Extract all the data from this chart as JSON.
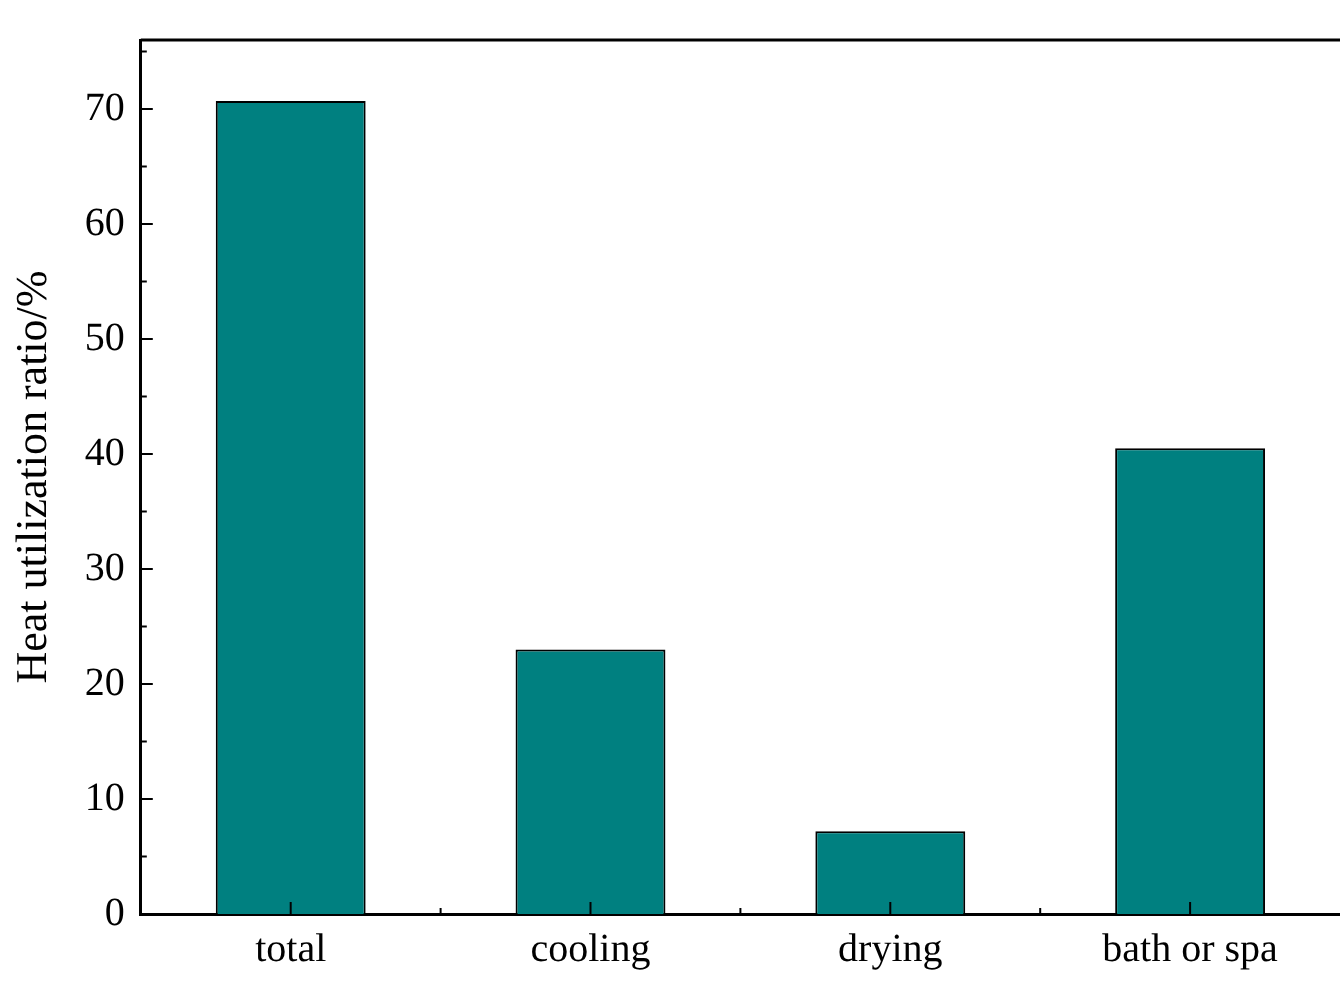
{
  "chart_data": {
    "type": "bar",
    "ylabel": "Heat utilization ratio/%",
    "categories": [
      "total",
      "cooling",
      "drying",
      "bath or spa"
    ],
    "values": [
      70.7,
      23.0,
      7.2,
      40.5
    ],
    "color": "#008080",
    "ylim": [
      0,
      76
    ],
    "yticks": [
      0,
      10,
      20,
      30,
      40,
      50,
      60,
      70
    ],
    "grid": false,
    "legend": false
  }
}
